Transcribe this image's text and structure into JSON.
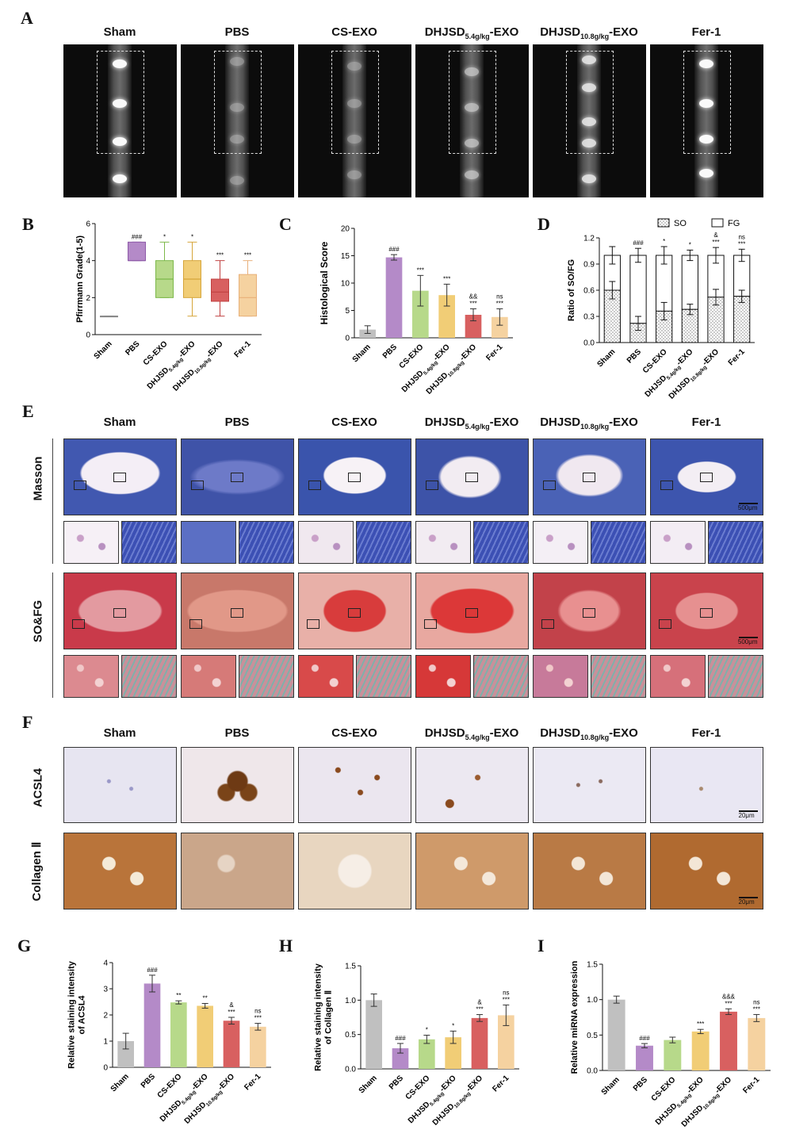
{
  "panels": {
    "A": "A",
    "B": "B",
    "C": "C",
    "D": "D",
    "E": "E",
    "F": "F",
    "G": "G",
    "H": "H",
    "I": "I"
  },
  "groups": [
    {
      "main": "Sham",
      "sub": "",
      "tail": ""
    },
    {
      "main": "PBS",
      "sub": "",
      "tail": ""
    },
    {
      "main": "CS-EXO",
      "sub": "",
      "tail": ""
    },
    {
      "main": "DHJSD",
      "sub": "5.4g/kg",
      "tail": "-EXO"
    },
    {
      "main": "DHJSD",
      "sub": "10.8g/kg",
      "tail": "-EXO"
    },
    {
      "main": "Fer-1",
      "sub": "",
      "tail": ""
    }
  ],
  "row_labels": {
    "masson": "Masson",
    "sofg": "SO&FG",
    "acsl4": "ACSL4",
    "collagen": "Collagen Ⅱ"
  },
  "scale_bars": {
    "E": "500μm",
    "F": "20μm"
  },
  "colors": {
    "sham": "#c0c0c0",
    "pbs": "#b48ac8",
    "cs": "#b7d98a",
    "d54": "#f1cd76",
    "d108": "#d86060",
    "fer": "#f5d2a0"
  },
  "chart_data": [
    {
      "panel": "B",
      "type": "box",
      "ylabel": "Pfirrmann Grade(1-5)",
      "ylim": [
        0,
        6
      ],
      "yticks": [
        0,
        2,
        4,
        6
      ],
      "categories": [
        "Sham",
        "PBS",
        "CS-EXO",
        "DHJSD5.4g/kg-EXO",
        "DHJSD10.8g/kg-EXO",
        "Fer-1"
      ],
      "boxes": [
        {
          "min": 1,
          "q1": 1,
          "median": 1,
          "q3": 1,
          "max": 1
        },
        {
          "min": 4,
          "q1": 4,
          "median": 4,
          "q3": 5,
          "max": 5
        },
        {
          "min": 2,
          "q1": 2,
          "median": 3,
          "q3": 4,
          "max": 5
        },
        {
          "min": 1,
          "q1": 2,
          "median": 3,
          "q3": 4,
          "max": 5
        },
        {
          "min": 1,
          "q1": 1.8,
          "median": 2.3,
          "q3": 3,
          "max": 4
        },
        {
          "min": 1,
          "q1": 1,
          "median": 2,
          "q3": 3.25,
          "max": 4
        }
      ],
      "annotations": [
        "",
        "###",
        "*",
        "*",
        "***",
        "***"
      ]
    },
    {
      "panel": "C",
      "type": "bar",
      "ylabel": "Histological Score",
      "ylim": [
        0,
        20
      ],
      "yticks": [
        0,
        5,
        10,
        15,
        20
      ],
      "categories": [
        "Sham",
        "PBS",
        "CS-EXO",
        "DHJSD5.4g/kg-EXO",
        "DHJSD10.8g/kg-EXO",
        "Fer-1"
      ],
      "values": [
        1.5,
        14.7,
        8.6,
        7.8,
        4.2,
        3.8
      ],
      "errors": [
        0.7,
        0.5,
        2.8,
        2.0,
        1.1,
        1.5
      ],
      "annotations": [
        [
          ""
        ],
        [
          "###"
        ],
        [
          "***"
        ],
        [
          "***"
        ],
        [
          "&&",
          "***"
        ],
        [
          "ns",
          "***"
        ]
      ]
    },
    {
      "panel": "D",
      "type": "stacked-bar",
      "ylabel": "Ratio of SO/FG",
      "ylim": [
        0,
        1.2
      ],
      "yticks": [
        0.0,
        0.3,
        0.6,
        0.9,
        1.2
      ],
      "legend": [
        "SO",
        "FG"
      ],
      "categories": [
        "Sham",
        "PBS",
        "CS-EXO",
        "DHJSD5.4g/kg-EXO",
        "DHJSD10.8g/kg-EXO",
        "Fer-1"
      ],
      "so": [
        0.6,
        0.22,
        0.36,
        0.38,
        0.52,
        0.53
      ],
      "so_err": [
        0.1,
        0.08,
        0.1,
        0.06,
        0.09,
        0.07
      ],
      "total": [
        1,
        1,
        1,
        1,
        1,
        1
      ],
      "total_err": [
        0.1,
        0.08,
        0.1,
        0.06,
        0.09,
        0.07
      ],
      "annotations": [
        [
          ""
        ],
        [
          "###"
        ],
        [
          "*"
        ],
        [
          "*"
        ],
        [
          "&",
          "***"
        ],
        [
          "ns",
          "***"
        ]
      ]
    },
    {
      "panel": "G",
      "type": "bar",
      "ylabel": "Relative staining intensity of ACSL4",
      "ylim": [
        0,
        4
      ],
      "yticks": [
        0,
        1,
        2,
        3,
        4
      ],
      "categories": [
        "Sham",
        "PBS",
        "CS-EXO",
        "DHJSD5.4g/kg-EXO",
        "DHJSD10.8g/kg-EXO",
        "Fer-1"
      ],
      "values": [
        1.0,
        3.2,
        2.48,
        2.35,
        1.78,
        1.55
      ],
      "errors": [
        0.3,
        0.32,
        0.06,
        0.09,
        0.13,
        0.13
      ],
      "annotations": [
        [
          ""
        ],
        [
          "###"
        ],
        [
          "**"
        ],
        [
          "**"
        ],
        [
          "&",
          "***"
        ],
        [
          "ns",
          "***"
        ]
      ]
    },
    {
      "panel": "H",
      "type": "bar",
      "ylabel": "Relative staining intensity of Collagen Ⅱ",
      "ylim": [
        0,
        1.5
      ],
      "yticks": [
        0.0,
        0.5,
        1.0,
        1.5
      ],
      "categories": [
        "Sham",
        "PBS",
        "CS-EXO",
        "DHJSD5.4g/kg-EXO",
        "DHJSD10.8g/kg-EXO",
        "Fer-1"
      ],
      "values": [
        1.0,
        0.3,
        0.43,
        0.46,
        0.74,
        0.78
      ],
      "errors": [
        0.09,
        0.07,
        0.06,
        0.09,
        0.05,
        0.15
      ],
      "annotations": [
        [
          ""
        ],
        [
          "###"
        ],
        [
          "*"
        ],
        [
          "*"
        ],
        [
          "&",
          "***"
        ],
        [
          "ns",
          "***"
        ]
      ]
    },
    {
      "panel": "I",
      "type": "bar",
      "ylabel": "Relative miRNA expression",
      "ylim": [
        0,
        1.5
      ],
      "yticks": [
        0.0,
        0.5,
        1.0,
        1.5
      ],
      "categories": [
        "Sham",
        "PBS",
        "CS-EXO",
        "DHJSD5.4g/kg-EXO",
        "DHJSD10.8g/kg-EXO",
        "Fer-1"
      ],
      "values": [
        1.0,
        0.35,
        0.43,
        0.55,
        0.83,
        0.74
      ],
      "errors": [
        0.05,
        0.03,
        0.04,
        0.03,
        0.04,
        0.05
      ],
      "annotations": [
        [
          ""
        ],
        [
          "###"
        ],
        [
          ""
        ],
        [
          "***"
        ],
        [
          "&&&",
          "***"
        ],
        [
          "ns",
          "***"
        ]
      ]
    }
  ]
}
